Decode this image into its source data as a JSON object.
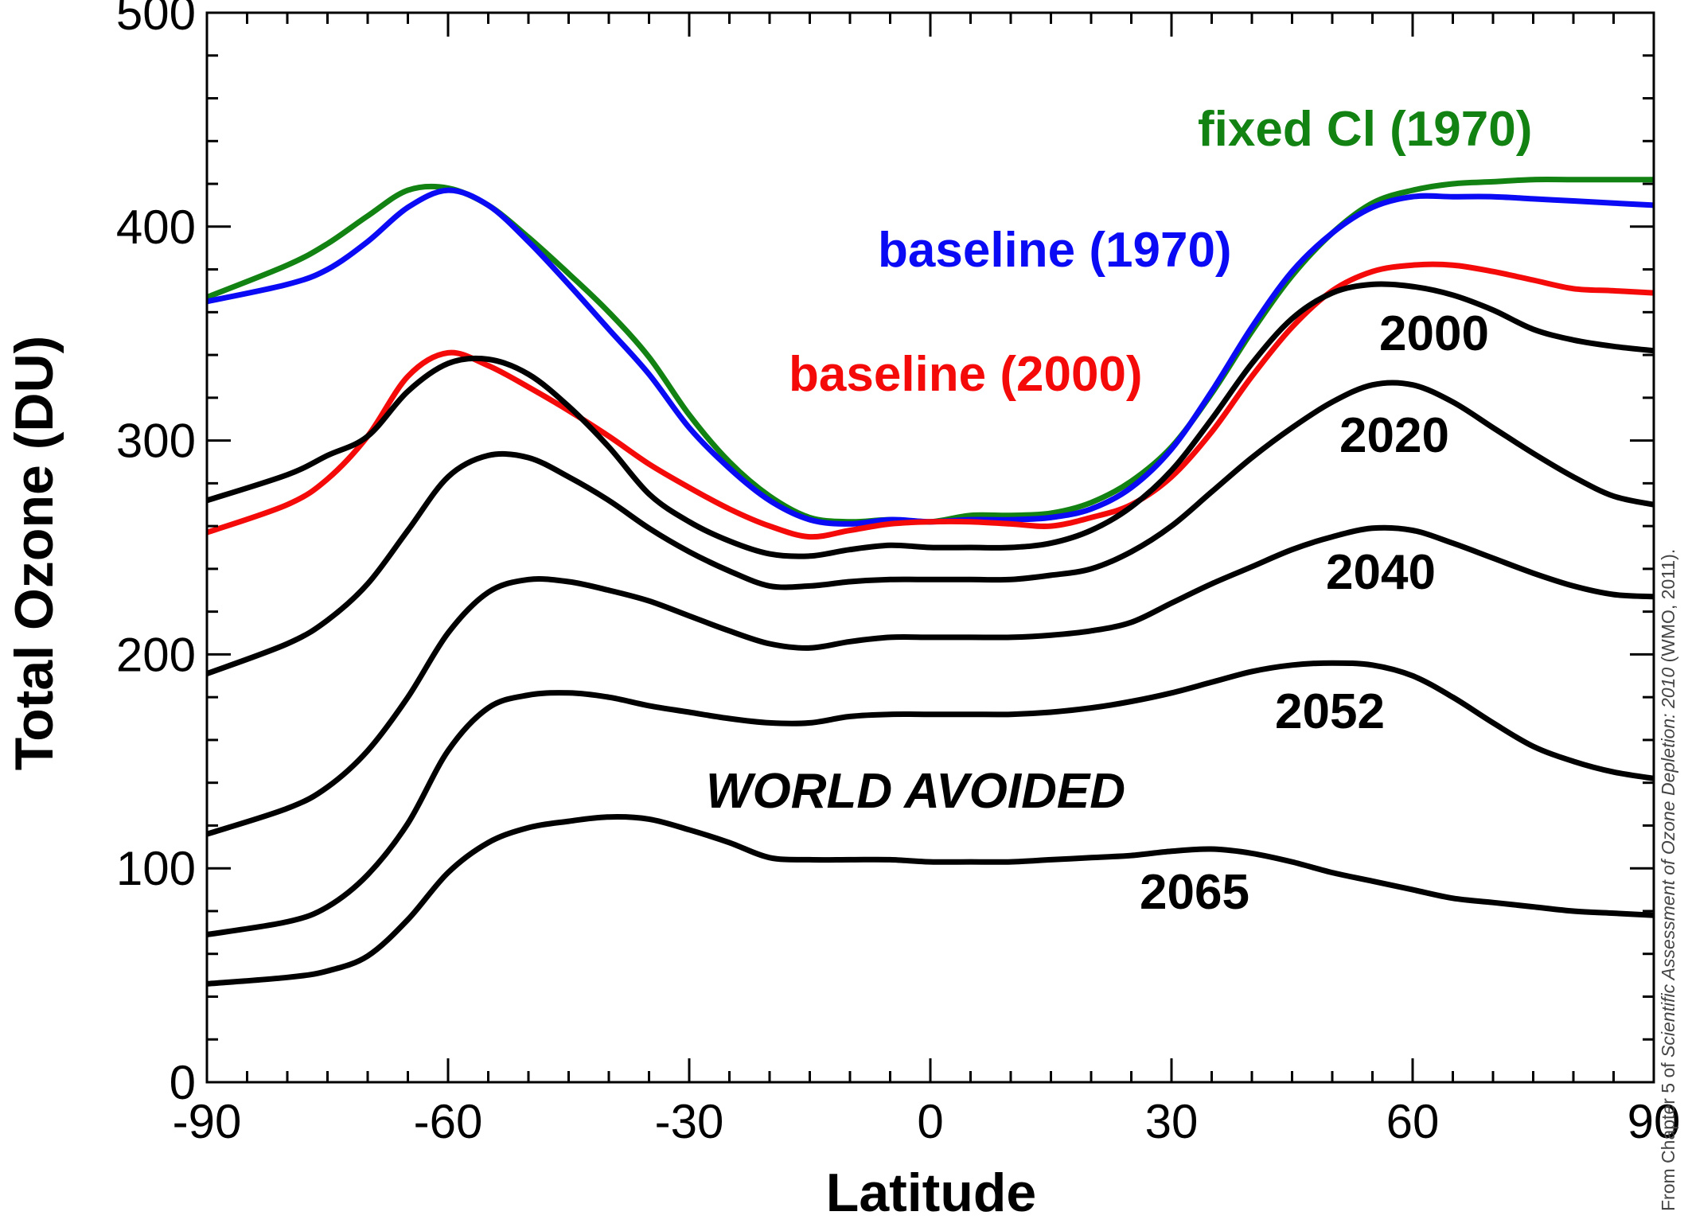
{
  "chart_data": {
    "type": "line",
    "xlabel": "Latitude",
    "ylabel": "Total Ozone (DU)",
    "xlim": [
      -90,
      90
    ],
    "ylim": [
      0,
      500
    ],
    "x_ticks": [
      -90,
      -60,
      -30,
      0,
      30,
      60,
      90
    ],
    "y_ticks": [
      0,
      100,
      200,
      300,
      400,
      500
    ],
    "x_tick_labels": [
      "-90",
      "-60",
      "-30",
      "0",
      "30",
      "60",
      "90"
    ],
    "y_tick_labels": [
      "0",
      "100",
      "200",
      "300",
      "400",
      "500"
    ],
    "grid": false,
    "legend": "none (series labelled directly on the plot)",
    "annotation": "WORLD AVOIDED",
    "source_note": {
      "prefix": "From Chapter 5 of ",
      "italic": "Scientific Assessment of Ozone Depletion: 2010",
      "suffix": " (WMO, 2011)."
    },
    "x": [
      -90,
      -80,
      -75,
      -70,
      -65,
      -60,
      -55,
      -50,
      -45,
      -40,
      -35,
      -30,
      -25,
      -20,
      -15,
      -10,
      -5,
      0,
      5,
      10,
      15,
      20,
      25,
      30,
      35,
      40,
      45,
      50,
      55,
      60,
      65,
      70,
      75,
      80,
      85,
      90
    ],
    "series": [
      {
        "name": "fixed Cl (1970)",
        "color": "#128212",
        "values": [
          367,
          382,
          392,
          405,
          417,
          418,
          410,
          395,
          378,
          360,
          339,
          312,
          290,
          274,
          264,
          262,
          263,
          262,
          265,
          265,
          266,
          271,
          281,
          297,
          322,
          351,
          377,
          397,
          411,
          417,
          420,
          421,
          422,
          422,
          422,
          422
        ]
      },
      {
        "name": "baseline (1970)",
        "color": "#0a0af5",
        "values": [
          365,
          373,
          380,
          393,
          409,
          417,
          410,
          393,
          373,
          352,
          331,
          306,
          287,
          272,
          263,
          261,
          263,
          262,
          263,
          263,
          264,
          268,
          278,
          296,
          323,
          353,
          379,
          397,
          409,
          414,
          414,
          414,
          413,
          412,
          411,
          410
        ]
      },
      {
        "name": "baseline (2000)",
        "color": "#f50a0a",
        "values": [
          257,
          270,
          282,
          302,
          330,
          341,
          335,
          325,
          314,
          302,
          289,
          278,
          268,
          260,
          255,
          258,
          261,
          262,
          262,
          261,
          260,
          264,
          270,
          283,
          304,
          330,
          353,
          370,
          379,
          382,
          382,
          379,
          375,
          371,
          370,
          369
        ]
      },
      {
        "name": "2000",
        "color": "#000000",
        "values": [
          272,
          284,
          293,
          302,
          323,
          336,
          338,
          331,
          316,
          297,
          275,
          262,
          253,
          247,
          246,
          249,
          251,
          250,
          250,
          250,
          252,
          258,
          269,
          286,
          310,
          336,
          357,
          369,
          373,
          372,
          368,
          361,
          352,
          347,
          344,
          342
        ]
      },
      {
        "name": "2020",
        "color": "#000000",
        "values": [
          191,
          205,
          216,
          233,
          258,
          283,
          293,
          292,
          283,
          272,
          259,
          248,
          239,
          232,
          232,
          234,
          235,
          235,
          235,
          235,
          237,
          240,
          248,
          260,
          276,
          292,
          306,
          318,
          326,
          326,
          318,
          306,
          294,
          283,
          274,
          270
        ]
      },
      {
        "name": "2040",
        "color": "#000000",
        "values": [
          116,
          128,
          138,
          155,
          180,
          210,
          229,
          235,
          234,
          230,
          225,
          218,
          211,
          205,
          203,
          206,
          208,
          208,
          208,
          208,
          209,
          211,
          215,
          224,
          233,
          241,
          249,
          255,
          259,
          258,
          252,
          245,
          238,
          232,
          228,
          227
        ]
      },
      {
        "name": "2052",
        "color": "#000000",
        "values": [
          69,
          75,
          82,
          97,
          121,
          155,
          175,
          181,
          182,
          180,
          176,
          173,
          170,
          168,
          168,
          171,
          172,
          172,
          172,
          172,
          173,
          175,
          178,
          182,
          187,
          192,
          195,
          196,
          195,
          190,
          180,
          168,
          157,
          150,
          145,
          142
        ]
      },
      {
        "name": "2065",
        "color": "#000000",
        "values": [
          46,
          49,
          52,
          59,
          76,
          98,
          112,
          119,
          122,
          124,
          123,
          118,
          112,
          105,
          104,
          104,
          104,
          103,
          103,
          103,
          104,
          105,
          106,
          108,
          109,
          107,
          103,
          98,
          94,
          90,
          86,
          84,
          82,
          80,
          79,
          78
        ]
      }
    ]
  }
}
